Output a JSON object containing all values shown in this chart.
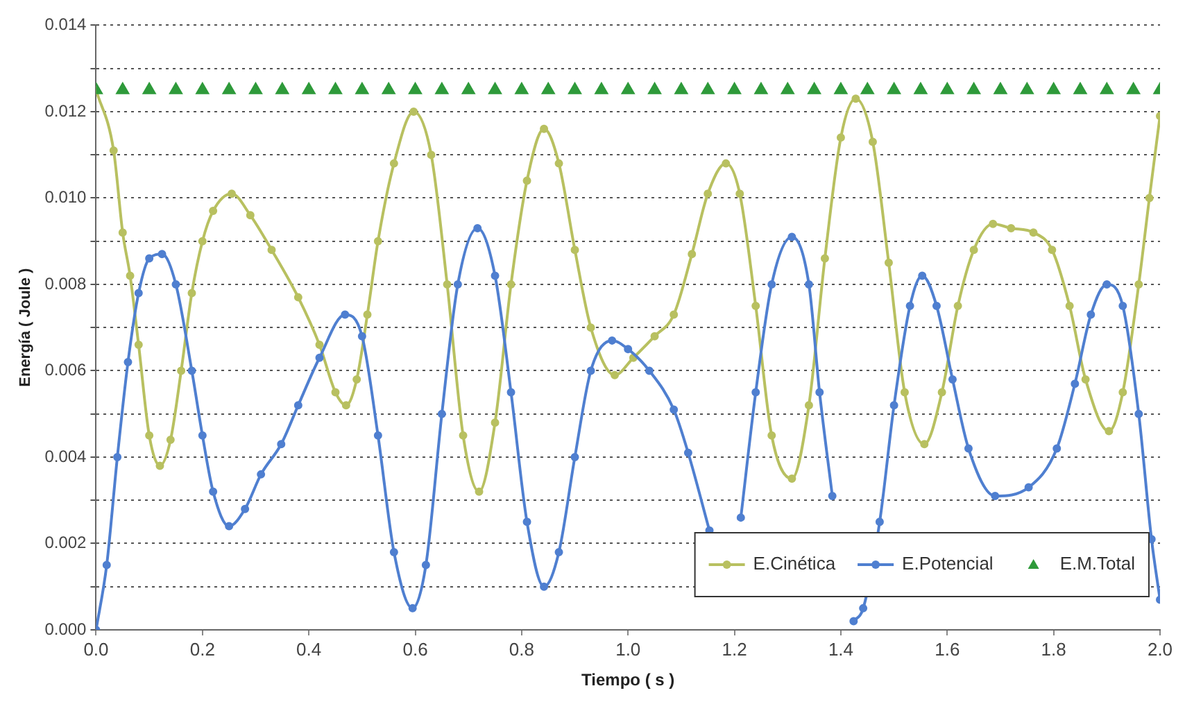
{
  "chart_data": {
    "type": "line",
    "xlabel": "Tiempo ( s )",
    "ylabel": "Energía ( Joule )",
    "xlim": [
      0,
      2
    ],
    "ylim": [
      0,
      0.014
    ],
    "xticks": [
      {
        "value": 0,
        "label": "0.0"
      },
      {
        "value": 0.2,
        "label": "0.2"
      },
      {
        "value": 0.4,
        "label": "0.4"
      },
      {
        "value": 0.6,
        "label": "0.6"
      },
      {
        "value": 0.8,
        "label": "0.8"
      },
      {
        "value": 1,
        "label": "1.0"
      },
      {
        "value": 1.2,
        "label": "1.2"
      },
      {
        "value": 1.4,
        "label": "1.4"
      },
      {
        "value": 1.6,
        "label": "1.6"
      },
      {
        "value": 1.8,
        "label": "1.8"
      },
      {
        "value": 2,
        "label": "2.0"
      }
    ],
    "yticks": [
      {
        "value": 0,
        "label": "0.000"
      },
      {
        "value": 0.001,
        "label": null
      },
      {
        "value": 0.002,
        "label": "0.002"
      },
      {
        "value": 0.003,
        "label": null
      },
      {
        "value": 0.004,
        "label": "0.004"
      },
      {
        "value": 0.005,
        "label": null
      },
      {
        "value": 0.006,
        "label": "0.006"
      },
      {
        "value": 0.007,
        "label": null
      },
      {
        "value": 0.008,
        "label": "0.008"
      },
      {
        "value": 0.009,
        "label": null
      },
      {
        "value": 0.01,
        "label": "0.010"
      },
      {
        "value": 0.011,
        "label": null
      },
      {
        "value": 0.012,
        "label": "0.012"
      },
      {
        "value": 0.013,
        "label": null
      },
      {
        "value": 0.014,
        "label": "0.014"
      }
    ],
    "grid": "y",
    "legend": "bottom right",
    "marker": "circle",
    "line_style": "solid",
    "series": [
      {
        "name": "E.Cinética",
        "color": "#b8c060",
        "x": [
          0,
          0.033,
          0.05,
          0.064,
          0.08,
          0.1,
          0.12,
          0.14,
          0.16,
          0.18,
          0.2,
          0.22,
          0.255,
          0.29,
          0.33,
          0.38,
          0.42,
          0.45,
          0.47,
          0.49,
          0.51,
          0.53,
          0.56,
          0.597,
          0.63,
          0.66,
          0.69,
          0.72,
          0.75,
          0.78,
          0.81,
          0.842,
          0.87,
          0.9,
          0.93,
          0.975,
          1.01,
          1.05,
          1.086,
          1.12,
          1.15,
          1.184,
          1.21,
          1.24,
          1.27,
          1.308,
          1.34,
          1.37,
          1.4,
          1.428,
          1.46,
          1.49,
          1.52,
          1.557,
          1.59,
          1.62,
          1.65,
          1.686,
          1.72,
          1.762,
          1.797,
          1.83,
          1.86,
          1.904,
          1.93,
          1.96,
          1.98,
          2
        ],
        "values": [
          0.0125,
          0.0111,
          0.0092,
          0.0082,
          0.0066,
          0.0045,
          0.0038,
          0.0044,
          0.006,
          0.0078,
          0.009,
          0.0097,
          0.0101,
          0.0096,
          0.0088,
          0.0077,
          0.0066,
          0.0055,
          0.0052,
          0.0058,
          0.0073,
          0.009,
          0.0108,
          0.012,
          0.011,
          0.008,
          0.0045,
          0.0032,
          0.0048,
          0.008,
          0.0104,
          0.0116,
          0.0108,
          0.0088,
          0.007,
          0.0059,
          0.0063,
          0.0068,
          0.0073,
          0.0087,
          0.0101,
          0.0108,
          0.0101,
          0.0075,
          0.0045,
          0.0035,
          0.0052,
          0.0086,
          0.0114,
          0.0123,
          0.0113,
          0.0085,
          0.0055,
          0.0043,
          0.0055,
          0.0075,
          0.0088,
          0.0094,
          0.0093,
          0.0092,
          0.0088,
          0.0075,
          0.0058,
          0.0046,
          0.0055,
          0.008,
          0.01,
          0.0119
        ]
      },
      {
        "name": "E.Potencial",
        "color": "#4f7fd0",
        "x": [
          0,
          0.02,
          0.04,
          0.06,
          0.08,
          0.1,
          0.124,
          0.15,
          0.18,
          0.2,
          0.22,
          0.25,
          0.28,
          0.31,
          0.348,
          0.38,
          0.42,
          0.468,
          0.5,
          0.53,
          0.56,
          0.595,
          0.62,
          0.65,
          0.68,
          0.717,
          0.75,
          0.78,
          0.81,
          0.842,
          0.87,
          0.9,
          0.93,
          0.97,
          1,
          1.04,
          1.086,
          1.113,
          1.153,
          1.18,
          1.212,
          1.24,
          1.27,
          1.308,
          1.34,
          1.36,
          1.384,
          1.4,
          1.424,
          1.442,
          1.473,
          1.5,
          1.53,
          1.553,
          1.58,
          1.61,
          1.64,
          1.69,
          1.753,
          1.806,
          1.84,
          1.87,
          1.9,
          1.93,
          1.96,
          1.984,
          2
        ],
        "values": [
          0,
          0.0015,
          0.004,
          0.0062,
          0.0078,
          0.0086,
          0.0087,
          0.008,
          0.006,
          0.0045,
          0.0032,
          0.0024,
          0.0028,
          0.0036,
          0.0043,
          0.0052,
          0.0063,
          0.0073,
          0.0068,
          0.0045,
          0.0018,
          0.0005,
          0.0015,
          0.005,
          0.008,
          0.0093,
          0.0082,
          0.0055,
          0.0025,
          0.001,
          0.0018,
          0.004,
          0.006,
          0.0067,
          0.0065,
          0.006,
          0.0051,
          0.0041,
          0.0023,
          null,
          0.0026,
          0.0055,
          0.008,
          0.0091,
          0.008,
          0.0055,
          0.0031,
          null,
          0.0002,
          0.0005,
          0.0025,
          0.0052,
          0.0075,
          0.0082,
          0.0075,
          0.0058,
          0.0042,
          0.0031,
          0.0033,
          0.0042,
          0.0057,
          0.0073,
          0.008,
          0.0075,
          0.005,
          0.0021,
          0.0007
        ]
      },
      {
        "name": "E.M.Total",
        "color": "#2e9a3a",
        "marker": "triangle",
        "type": "scatter",
        "x": [
          0,
          0.05,
          0.1,
          0.15,
          0.2,
          0.25,
          0.3,
          0.35,
          0.4,
          0.45,
          0.5,
          0.55,
          0.6,
          0.65,
          0.7,
          0.75,
          0.8,
          0.85,
          0.9,
          0.95,
          1,
          1.05,
          1.1,
          1.15,
          1.2,
          1.25,
          1.3,
          1.35,
          1.4,
          1.45,
          1.5,
          1.55,
          1.6,
          1.65,
          1.7,
          1.75,
          1.8,
          1.85,
          1.9,
          1.95,
          2
        ],
        "values": [
          0.0125,
          0.0125,
          0.0125,
          0.0125,
          0.0125,
          0.0125,
          0.0125,
          0.0125,
          0.0125,
          0.0125,
          0.0125,
          0.0125,
          0.0125,
          0.0125,
          0.0125,
          0.0125,
          0.0125,
          0.0125,
          0.0125,
          0.0125,
          0.0125,
          0.0125,
          0.0125,
          0.0125,
          0.0125,
          0.0125,
          0.0125,
          0.0125,
          0.0125,
          0.0125,
          0.0125,
          0.0125,
          0.0125,
          0.0125,
          0.0125,
          0.0125,
          0.0125,
          0.0125,
          0.0125,
          0.0125,
          0.0125
        ]
      }
    ]
  }
}
